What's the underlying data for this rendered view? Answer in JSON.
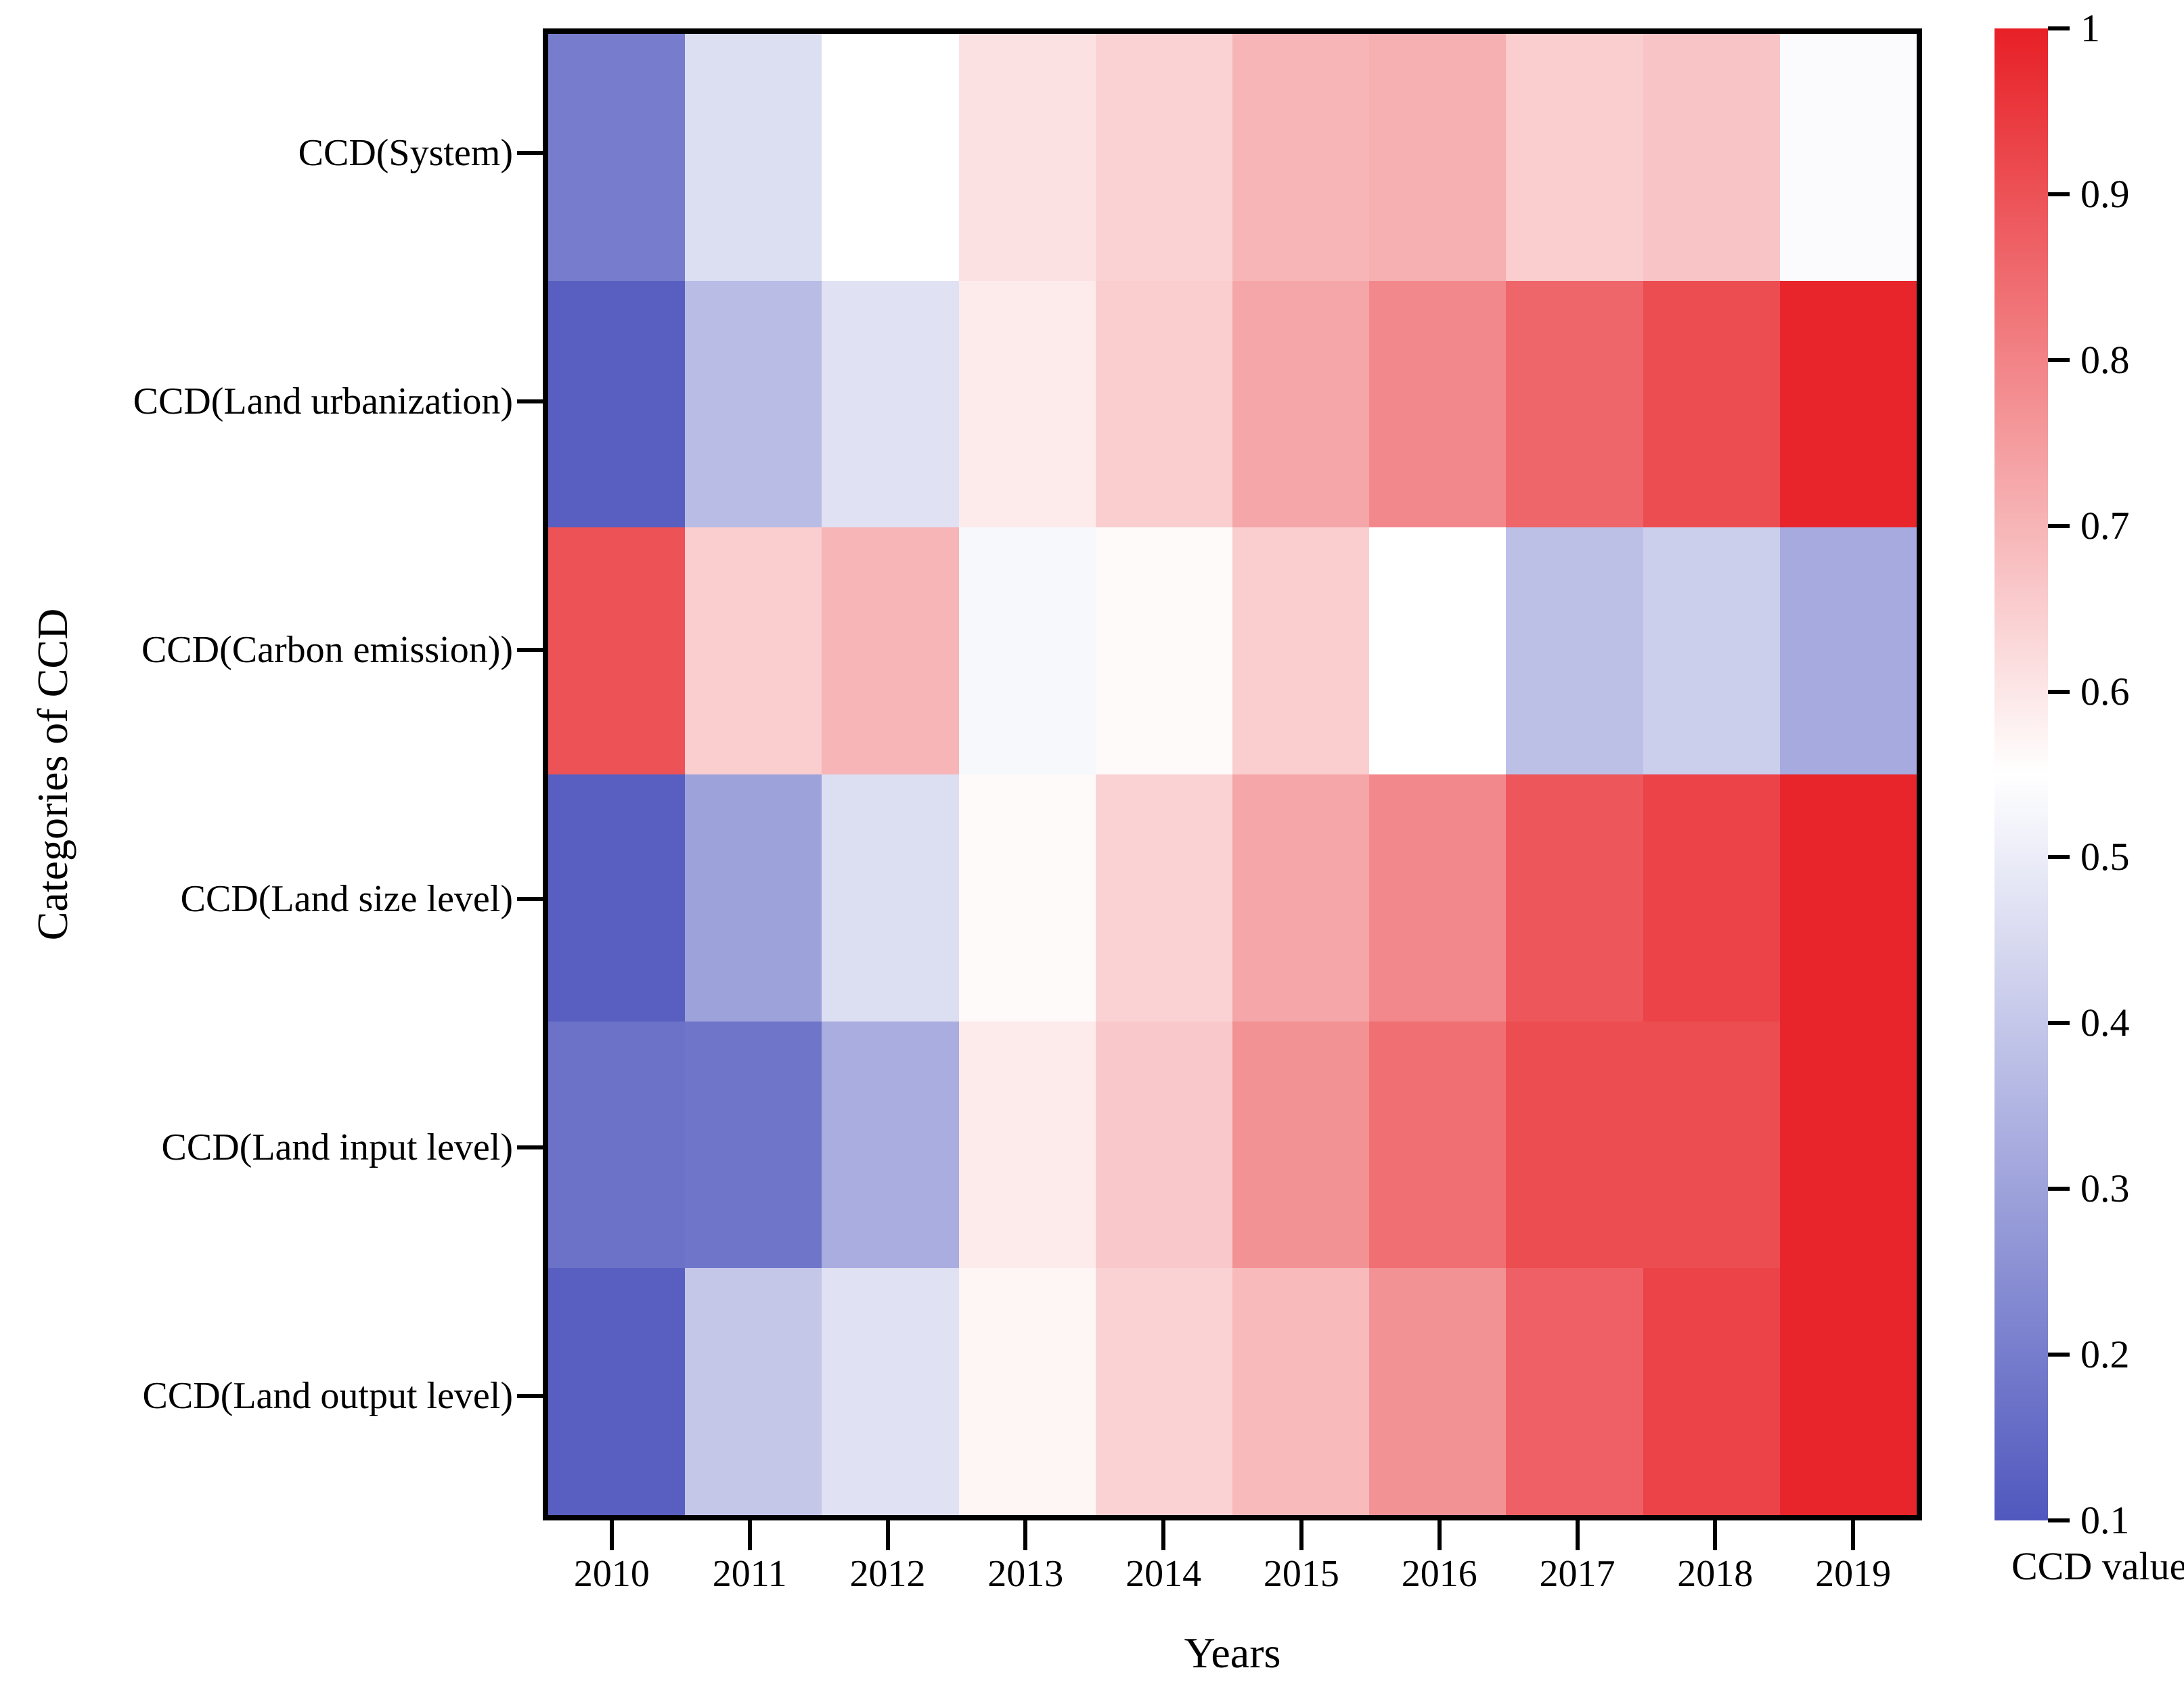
{
  "figure": {
    "background": "#ffffff",
    "axis_color": "#000000"
  },
  "chart_data": {
    "type": "heatmap",
    "title": "",
    "xlabel": "Years",
    "ylabel": "Categories of CCD",
    "colorbar_label": "CCD value",
    "x_categories": [
      "2010",
      "2011",
      "2012",
      "2013",
      "2014",
      "2015",
      "2016",
      "2017",
      "2018",
      "2019"
    ],
    "y_categories": [
      "CCD(System)",
      "CCD(Land urbanization)",
      "CCD(Carbon emission))",
      "CCD(Land size level)",
      "CCD(Land input level)",
      "CCD(Land output level)"
    ],
    "series": [
      {
        "name": "CCD(System)",
        "values": [
          0.2,
          0.46,
          0.55,
          0.61,
          0.64,
          0.7,
          0.71,
          0.65,
          0.67,
          0.54
        ]
      },
      {
        "name": "CCD(Land urbanization)",
        "values": [
          0.12,
          0.37,
          0.47,
          0.59,
          0.65,
          0.73,
          0.79,
          0.86,
          0.91,
          0.99
        ]
      },
      {
        "name": "CCD(Carbon emission))",
        "values": [
          0.9,
          0.65,
          0.7,
          0.53,
          0.56,
          0.65,
          0.55,
          0.38,
          0.42,
          0.32
        ]
      },
      {
        "name": "CCD(Land size level)",
        "values": [
          0.12,
          0.3,
          0.46,
          0.56,
          0.64,
          0.73,
          0.79,
          0.89,
          0.93,
          0.99
        ]
      },
      {
        "name": "CCD(Land input level)",
        "values": [
          0.17,
          0.18,
          0.33,
          0.59,
          0.66,
          0.77,
          0.84,
          0.91,
          0.91,
          0.99
        ]
      },
      {
        "name": "CCD(Land output level)",
        "values": [
          0.12,
          0.4,
          0.47,
          0.57,
          0.64,
          0.69,
          0.77,
          0.87,
          0.93,
          0.99
        ]
      }
    ],
    "vmin": 0.1,
    "vmax": 1.0,
    "colorbar_ticks": [
      "1",
      "0.9",
      "0.8",
      "0.7",
      "0.6",
      "0.5",
      "0.4",
      "0.3",
      "0.2",
      "0.1"
    ],
    "colormap_stops": [
      {
        "value": 0.1,
        "color": "#5058BE"
      },
      {
        "value": 0.55,
        "color": "#FFFFFF"
      },
      {
        "value": 1.0,
        "color": "#E72026"
      }
    ],
    "grid": false,
    "legend": "none",
    "colorbar_position": "right"
  }
}
